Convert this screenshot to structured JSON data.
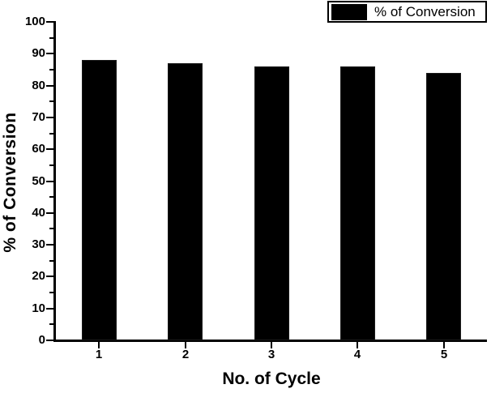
{
  "figure": {
    "background_color": "#ffffff"
  },
  "chart_data": {
    "type": "bar",
    "title": "",
    "categories": [
      "1",
      "2",
      "3",
      "4",
      "5"
    ],
    "values": [
      88,
      87,
      86,
      86,
      84
    ],
    "xlabel": "No. of Cycle",
    "ylabel": "% of Conversion",
    "ylim": [
      0,
      100
    ],
    "y_major_tick_step": 10,
    "y_minor_tick_step": 5,
    "y_tick_labels": [
      "0",
      "10",
      "20",
      "30",
      "40",
      "50",
      "60",
      "70",
      "80",
      "90",
      "100"
    ],
    "grid": false,
    "legend_position": "top-right",
    "legend_entries": [
      {
        "label": "% of Conversion",
        "swatch_color": "#000000"
      }
    ],
    "bar_color": "#000000",
    "axis_color": "#000000",
    "tick_label_color": "#000000"
  }
}
